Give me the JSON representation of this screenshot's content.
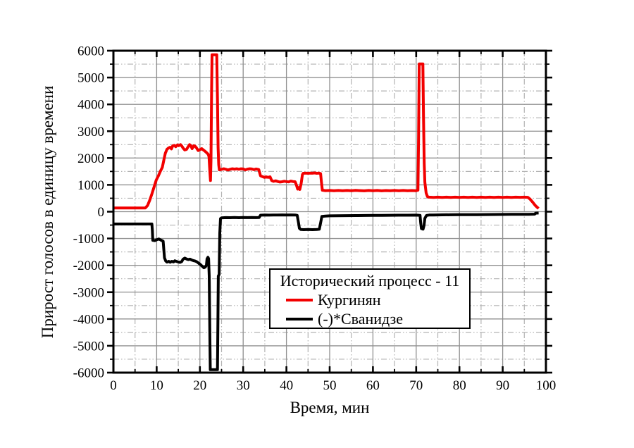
{
  "chart_data": {
    "type": "line",
    "title": "",
    "xlabel": "Время, мин",
    "ylabel": "Прирост голосов в единицу времени",
    "xlim": [
      0,
      100
    ],
    "ylim": [
      -6000,
      6000
    ],
    "x_major_step": 10,
    "x_minor_step": 5,
    "y_major_step": 1000,
    "y_minor_step": 500,
    "x_ticks": [
      0,
      10,
      20,
      30,
      40,
      50,
      60,
      70,
      80,
      90,
      100
    ],
    "y_ticks": [
      6000,
      5000,
      4000,
      3000,
      2000,
      1000,
      0,
      -1000,
      -2000,
      -3000,
      -4000,
      -5000,
      -6000
    ],
    "grid": {
      "major_color": "#909090",
      "minor_color": "#b3b3b3",
      "legend_position": "inside-lower-middle"
    },
    "legend_title": "Исторический процесс - 11",
    "series": [
      {
        "name": "(-)*Сванидзе",
        "color": "#000000",
        "points": [
          [
            0,
            -460
          ],
          [
            8.9,
            -460
          ],
          [
            9.0,
            -700
          ],
          [
            9.1,
            -1070
          ],
          [
            9.6,
            -1080
          ],
          [
            10.1,
            -1040
          ],
          [
            10.5,
            -1020
          ],
          [
            10.9,
            -1050
          ],
          [
            11.2,
            -1080
          ],
          [
            11.5,
            -1100
          ],
          [
            11.65,
            -1400
          ],
          [
            11.8,
            -1720
          ],
          [
            12.1,
            -1840
          ],
          [
            12.4,
            -1880
          ],
          [
            12.8,
            -1850
          ],
          [
            13.1,
            -1885
          ],
          [
            13.5,
            -1850
          ],
          [
            13.9,
            -1875
          ],
          [
            14.2,
            -1830
          ],
          [
            14.6,
            -1855
          ],
          [
            15,
            -1875
          ],
          [
            15.4,
            -1890
          ],
          [
            15.8,
            -1860
          ],
          [
            16.1,
            -1770
          ],
          [
            16.5,
            -1730
          ],
          [
            16.9,
            -1765
          ],
          [
            17.3,
            -1785
          ],
          [
            17.7,
            -1770
          ],
          [
            18.1,
            -1800
          ],
          [
            18.5,
            -1825
          ],
          [
            18.9,
            -1840
          ],
          [
            19.3,
            -1870
          ],
          [
            19.7,
            -1920
          ],
          [
            20.1,
            -1970
          ],
          [
            20.5,
            -2030
          ],
          [
            20.9,
            -2090
          ],
          [
            21.2,
            -2070
          ],
          [
            21.5,
            -2000
          ],
          [
            21.65,
            -1760
          ],
          [
            21.85,
            -1700
          ],
          [
            22,
            -1750
          ],
          [
            22.15,
            -2400
          ],
          [
            22.3,
            -4600
          ],
          [
            22.4,
            -5890
          ],
          [
            24.05,
            -5890
          ],
          [
            24.15,
            -4200
          ],
          [
            24.25,
            -2400
          ],
          [
            24.45,
            -2340
          ],
          [
            24.6,
            -800
          ],
          [
            24.75,
            -260
          ],
          [
            25,
            -230
          ],
          [
            26,
            -220
          ],
          [
            27,
            -224
          ],
          [
            28,
            -218
          ],
          [
            29,
            -222
          ],
          [
            30,
            -216
          ],
          [
            31,
            -220
          ],
          [
            32,
            -217
          ],
          [
            33,
            -220
          ],
          [
            33.7,
            -215
          ],
          [
            34,
            -132
          ],
          [
            35,
            -126
          ],
          [
            36,
            -129
          ],
          [
            37,
            -123
          ],
          [
            38,
            -127
          ],
          [
            39,
            -121
          ],
          [
            40,
            -125
          ],
          [
            41,
            -121
          ],
          [
            42,
            -123
          ],
          [
            42.5,
            -136
          ],
          [
            42.8,
            -420
          ],
          [
            43,
            -620
          ],
          [
            43.3,
            -665
          ],
          [
            44,
            -670
          ],
          [
            45,
            -662
          ],
          [
            46,
            -670
          ],
          [
            47,
            -665
          ],
          [
            47.6,
            -655
          ],
          [
            47.9,
            -420
          ],
          [
            48.2,
            -175
          ],
          [
            49,
            -162
          ],
          [
            50,
            -156
          ],
          [
            52,
            -151
          ],
          [
            54,
            -148
          ],
          [
            56,
            -145
          ],
          [
            58,
            -142
          ],
          [
            60,
            -140
          ],
          [
            62,
            -137
          ],
          [
            64,
            -134
          ],
          [
            66,
            -132
          ],
          [
            68,
            -130
          ],
          [
            70,
            -128
          ],
          [
            70.9,
            -140
          ],
          [
            71.05,
            -420
          ],
          [
            71.2,
            -630
          ],
          [
            71.6,
            -650
          ],
          [
            71.8,
            -520
          ],
          [
            72,
            -250
          ],
          [
            72.4,
            -140
          ],
          [
            73,
            -126
          ],
          [
            74,
            -123
          ],
          [
            75,
            -121
          ],
          [
            76,
            -119
          ],
          [
            78,
            -116
          ],
          [
            80,
            -114
          ],
          [
            82,
            -111
          ],
          [
            84,
            -109
          ],
          [
            86,
            -107
          ],
          [
            88,
            -105
          ],
          [
            90,
            -103
          ],
          [
            92,
            -100
          ],
          [
            94,
            -98
          ],
          [
            96,
            -96
          ],
          [
            97.4,
            -93
          ],
          [
            97.6,
            -55
          ],
          [
            98.3,
            -50
          ]
        ]
      },
      {
        "name": "Кургинян",
        "color": "#f20000",
        "points": [
          [
            0,
            140
          ],
          [
            7.4,
            140
          ],
          [
            7.9,
            230
          ],
          [
            8.4,
            430
          ],
          [
            8.9,
            660
          ],
          [
            9.4,
            920
          ],
          [
            9.9,
            1180
          ],
          [
            10.4,
            1340
          ],
          [
            10.9,
            1520
          ],
          [
            11.3,
            1650
          ],
          [
            11.7,
            1950
          ],
          [
            12,
            2180
          ],
          [
            12.4,
            2330
          ],
          [
            12.8,
            2380
          ],
          [
            13.1,
            2400
          ],
          [
            13.4,
            2340
          ],
          [
            13.7,
            2450
          ],
          [
            14.1,
            2470
          ],
          [
            14.4,
            2420
          ],
          [
            14.8,
            2490
          ],
          [
            15.1,
            2460
          ],
          [
            15.5,
            2500
          ],
          [
            15.8,
            2450
          ],
          [
            16.1,
            2370
          ],
          [
            16.5,
            2300
          ],
          [
            16.9,
            2320
          ],
          [
            17.2,
            2400
          ],
          [
            17.6,
            2500
          ],
          [
            17.9,
            2460
          ],
          [
            18.2,
            2350
          ],
          [
            18.6,
            2460
          ],
          [
            18.9,
            2440
          ],
          [
            19.2,
            2380
          ],
          [
            19.6,
            2280
          ],
          [
            20,
            2310
          ],
          [
            20.4,
            2350
          ],
          [
            20.8,
            2300
          ],
          [
            21.2,
            2250
          ],
          [
            21.6,
            2190
          ],
          [
            21.9,
            2140
          ],
          [
            22.1,
            2050
          ],
          [
            22.3,
            1500
          ],
          [
            22.45,
            1160
          ],
          [
            22.55,
            1900
          ],
          [
            22.7,
            4600
          ],
          [
            22.8,
            5850
          ],
          [
            23.9,
            5850
          ],
          [
            24.05,
            4200
          ],
          [
            24.2,
            2400
          ],
          [
            24.35,
            1750
          ],
          [
            24.5,
            1560
          ],
          [
            25,
            1575
          ],
          [
            25.5,
            1600
          ],
          [
            26,
            1580
          ],
          [
            26.5,
            1555
          ],
          [
            27,
            1580
          ],
          [
            27.5,
            1600
          ],
          [
            28,
            1585
          ],
          [
            28.5,
            1600
          ],
          [
            29,
            1580
          ],
          [
            29.5,
            1600
          ],
          [
            30,
            1590
          ],
          [
            30.5,
            1560
          ],
          [
            31,
            1585
          ],
          [
            31.5,
            1600
          ],
          [
            32,
            1590
          ],
          [
            32.5,
            1565
          ],
          [
            33,
            1590
          ],
          [
            33.6,
            1570
          ],
          [
            34,
            1340
          ],
          [
            34.4,
            1310
          ],
          [
            34.9,
            1280
          ],
          [
            35.3,
            1300
          ],
          [
            35.8,
            1280
          ],
          [
            36.2,
            1300
          ],
          [
            36.6,
            1160
          ],
          [
            37,
            1130
          ],
          [
            37.5,
            1150
          ],
          [
            38,
            1125
          ],
          [
            38.5,
            1105
          ],
          [
            39,
            1115
          ],
          [
            39.5,
            1135
          ],
          [
            40,
            1120
          ],
          [
            40.5,
            1110
          ],
          [
            41,
            1140
          ],
          [
            41.5,
            1125
          ],
          [
            42,
            1115
          ],
          [
            42.3,
            1000
          ],
          [
            42.6,
            840
          ],
          [
            42.9,
            900
          ],
          [
            43.1,
            830
          ],
          [
            43.4,
            1050
          ],
          [
            43.7,
            1380
          ],
          [
            43.9,
            1430
          ],
          [
            44.5,
            1440
          ],
          [
            45,
            1430
          ],
          [
            45.5,
            1440
          ],
          [
            46,
            1435
          ],
          [
            46.5,
            1445
          ],
          [
            47,
            1430
          ],
          [
            47.5,
            1440
          ],
          [
            47.9,
            1420
          ],
          [
            48.1,
            1100
          ],
          [
            48.3,
            800
          ],
          [
            49,
            785
          ],
          [
            50,
            790
          ],
          [
            51,
            780
          ],
          [
            52,
            790
          ],
          [
            53,
            782
          ],
          [
            54,
            790
          ],
          [
            55,
            780
          ],
          [
            56,
            792
          ],
          [
            57,
            785
          ],
          [
            58,
            778
          ],
          [
            59,
            790
          ],
          [
            60,
            783
          ],
          [
            61,
            790
          ],
          [
            62,
            778
          ],
          [
            63,
            788
          ],
          [
            64,
            780
          ],
          [
            65,
            790
          ],
          [
            66,
            782
          ],
          [
            67,
            790
          ],
          [
            68,
            780
          ],
          [
            69,
            788
          ],
          [
            70,
            782
          ],
          [
            70.4,
            800
          ],
          [
            70.55,
            2800
          ],
          [
            70.7,
            5510
          ],
          [
            71.55,
            5510
          ],
          [
            71.7,
            3500
          ],
          [
            71.85,
            1800
          ],
          [
            72,
            1100
          ],
          [
            72.3,
            700
          ],
          [
            72.6,
            560
          ],
          [
            73,
            540
          ],
          [
            74,
            532
          ],
          [
            75,
            542
          ],
          [
            76,
            533
          ],
          [
            77,
            541
          ],
          [
            78,
            534
          ],
          [
            79,
            540
          ],
          [
            80,
            533
          ],
          [
            81,
            540
          ],
          [
            82,
            532
          ],
          [
            83,
            540
          ],
          [
            84,
            534
          ],
          [
            85,
            541
          ],
          [
            86,
            533
          ],
          [
            87,
            540
          ],
          [
            88,
            534
          ],
          [
            89,
            540
          ],
          [
            90,
            533
          ],
          [
            91,
            540
          ],
          [
            92,
            534
          ],
          [
            93,
            540
          ],
          [
            94,
            535
          ],
          [
            95,
            542
          ],
          [
            95.8,
            535
          ],
          [
            96.3,
            470
          ],
          [
            96.9,
            360
          ],
          [
            97.5,
            240
          ],
          [
            98,
            160
          ],
          [
            98.3,
            120
          ]
        ]
      }
    ]
  }
}
